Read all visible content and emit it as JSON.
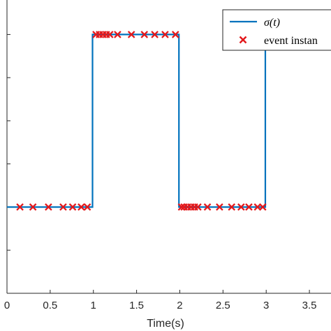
{
  "chart_data": {
    "type": "line",
    "title": "",
    "xlabel": "Time(s)",
    "ylabel": "",
    "xlim": [
      0,
      3.75
    ],
    "ylim": [
      0.5,
      2.2
    ],
    "xticks": [
      0,
      0.5,
      1,
      1.5,
      2,
      2.5,
      3,
      3.5
    ],
    "xtick_labels": [
      "0",
      "0.5",
      "1",
      "1.5",
      "2",
      "2.5",
      "3",
      "3.5"
    ],
    "yticks": [
      0.5,
      0.75,
      1,
      1.25,
      1.5,
      1.75,
      2
    ],
    "grid": false,
    "legend_placement": "top-right",
    "series": [
      {
        "name": "σ(t)",
        "kind": "line",
        "color": "#0072BD",
        "x": [
          0,
          0.99,
          0.99,
          1.99,
          1.99,
          2.99,
          2.99,
          3.75
        ],
        "y": [
          1,
          1,
          2,
          2,
          1,
          1,
          2,
          2
        ]
      },
      {
        "name": "event instants",
        "kind": "marker",
        "marker": "x",
        "color": "#E3191C",
        "x": [
          0.15,
          0.3,
          0.48,
          0.65,
          0.76,
          0.86,
          0.93,
          1.03,
          1.07,
          1.11,
          1.15,
          1.19,
          1.28,
          1.44,
          1.59,
          1.71,
          1.83,
          1.95,
          2.02,
          2.05,
          2.09,
          2.13,
          2.17,
          2.21,
          2.32,
          2.46,
          2.6,
          2.71,
          2.8,
          2.9,
          2.96,
          3.02,
          3.06,
          3.1,
          3.14,
          3.18,
          3.22,
          3.27,
          3.32,
          3.39,
          3.47,
          3.57,
          3.72
        ],
        "y": [
          1,
          1,
          1,
          1,
          1,
          1,
          1,
          2,
          2,
          2,
          2,
          2,
          2,
          2,
          2,
          2,
          2,
          2,
          1,
          1,
          1,
          1,
          1,
          1,
          1,
          1,
          1,
          1,
          1,
          1,
          1,
          2,
          2,
          2,
          2,
          2,
          2,
          2,
          2,
          2,
          2,
          2,
          2
        ]
      }
    ]
  },
  "legend": {
    "entries": [
      {
        "label": "σ(t)",
        "icon": "line",
        "color": "#0072BD"
      },
      {
        "label": "event instan",
        "icon": "x-marker",
        "color": "#E3191C"
      }
    ]
  }
}
